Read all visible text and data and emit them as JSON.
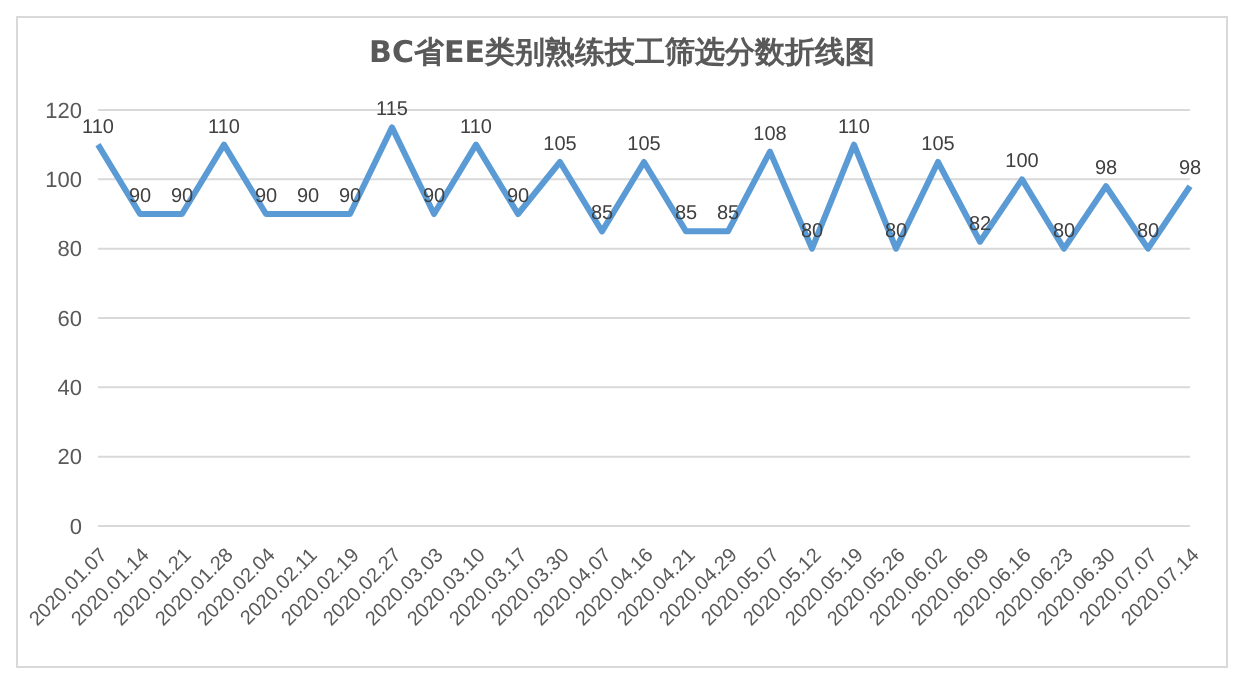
{
  "chart_data": {
    "type": "line",
    "title": "BC省EE类别熟练技工筛选分数折线图",
    "categories": [
      "2020.01.07",
      "2020.01.14",
      "2020.01.21",
      "2020.01.28",
      "2020.02.04",
      "2020.02.11",
      "2020.02.19",
      "2020.02.27",
      "2020.03.03",
      "2020.03.10",
      "2020.03.17",
      "2020.03.30",
      "2020.04.07",
      "2020.04.16",
      "2020.04.21",
      "2020.04.29",
      "2020.05.07",
      "2020.05.12",
      "2020.05.19",
      "2020.05.26",
      "2020.06.02",
      "2020.06.09",
      "2020.06.16",
      "2020.06.23",
      "2020.06.30",
      "2020.07.07",
      "2020.07.14"
    ],
    "values": [
      110,
      90,
      90,
      110,
      90,
      90,
      90,
      115,
      90,
      110,
      90,
      105,
      85,
      105,
      85,
      85,
      108,
      80,
      110,
      80,
      105,
      82,
      100,
      80,
      98,
      80,
      98
    ],
    "color": "#5b9bd5",
    "ylim": [
      0,
      120
    ],
    "yticks": [
      0,
      20,
      40,
      60,
      80,
      100,
      120
    ],
    "grid": "y",
    "data_labels": true,
    "marker": "none",
    "line_style": "solid",
    "legend": false
  }
}
